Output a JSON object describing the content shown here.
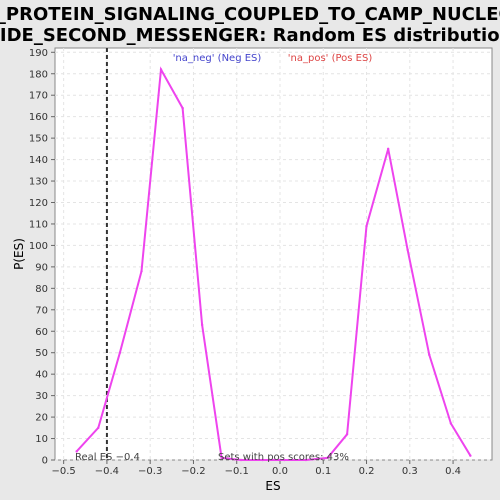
{
  "chart_data": {
    "type": "line",
    "title_line1": "G_PROTEIN_SIGNALING_COUPLED_TO_CAMP_NUCLEO",
    "title_line2": "TIDE_SECOND_MESSENGER: Random ES distribution",
    "xlabel": "ES",
    "ylabel": "P(ES)",
    "xlim": [
      -0.52,
      0.49
    ],
    "ylim": [
      0,
      192
    ],
    "xticks": [
      -0.5,
      -0.4,
      -0.3,
      -0.2,
      -0.1,
      0.0,
      0.1,
      0.2,
      0.3,
      0.4
    ],
    "xtick_labels": [
      "−0.5",
      "−0.4",
      "−0.3",
      "−0.2",
      "−0.1",
      "0.0",
      "0.1",
      "0.2",
      "0.3",
      "0.4"
    ],
    "yticks": [
      0,
      10,
      20,
      30,
      40,
      50,
      60,
      70,
      80,
      90,
      100,
      110,
      120,
      130,
      140,
      150,
      160,
      170,
      180,
      190
    ],
    "grid": true,
    "line_color": "#ee44ee",
    "series": [
      {
        "x": [
          -0.47,
          -0.42,
          -0.37,
          -0.32,
          -0.275,
          -0.225,
          -0.18,
          -0.135,
          -0.09,
          -0.04,
          0.01,
          0.06,
          0.11,
          0.155,
          0.2,
          0.25,
          0.295,
          0.345,
          0.395,
          0.44
        ],
        "values": [
          4,
          15,
          50,
          88,
          182,
          164,
          63,
          1,
          0,
          0,
          0,
          0,
          1,
          12,
          109,
          145,
          98,
          49,
          17,
          2
        ]
      }
    ],
    "legend": [
      {
        "label": "'na_neg' (Neg ES)",
        "color": "#4444cc"
      },
      {
        "label": "'na_pos' (Pos ES)",
        "color": "#dd4444"
      }
    ],
    "legend_placement": "top",
    "real_es": -0.4,
    "real_es_label": "Real ES −0.4",
    "pos_scores_label": "Sets with pos scores: 43%"
  }
}
